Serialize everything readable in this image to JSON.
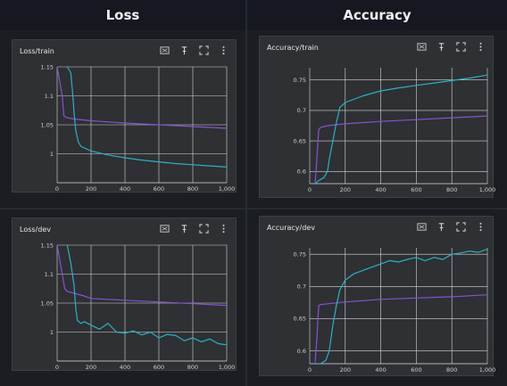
{
  "headers": {
    "left": "Loss",
    "right": "Accuracy"
  },
  "icon_names": [
    "fit-domain-icon",
    "pin-icon",
    "fullscreen-icon",
    "more-vert-icon"
  ],
  "colors": {
    "purple": "#8a4fd8",
    "cyan": "#24b4c9"
  },
  "chart_data": [
    {
      "type": "line",
      "title": "Loss/train",
      "xlim": [
        0,
        1000
      ],
      "ylim": [
        0.95,
        1.15
      ],
      "xticks": [
        0,
        200,
        400,
        600,
        800,
        1000
      ],
      "xtick_labels": [
        "0",
        "200",
        "400",
        "600",
        "800",
        "1,000"
      ],
      "yticks": [
        1,
        1.05,
        1.1,
        1.15
      ],
      "ytick_labels": [
        "1",
        "1.05",
        "1.1",
        "1.15"
      ],
      "grid": true,
      "series": [
        {
          "color": "#8a4fd8",
          "x": [
            0,
            30,
            40,
            60,
            100,
            200,
            400,
            600,
            800,
            1000
          ],
          "y": [
            1.15,
            1.1,
            1.065,
            1.062,
            1.06,
            1.057,
            1.053,
            1.05,
            1.047,
            1.044
          ]
        },
        {
          "color": "#24b4c9",
          "x": [
            60,
            80,
            90,
            100,
            110,
            125,
            140,
            160,
            200,
            300,
            400,
            500,
            600,
            700,
            800,
            900,
            1000
          ],
          "y": [
            1.15,
            1.14,
            1.11,
            1.07,
            1.04,
            1.02,
            1.013,
            1.01,
            1.005,
            0.998,
            0.993,
            0.989,
            0.986,
            0.983,
            0.981,
            0.979,
            0.977
          ]
        }
      ]
    },
    {
      "type": "line",
      "title": "Accuracy/train",
      "xlim": [
        0,
        1000
      ],
      "ylim": [
        0.58,
        0.77
      ],
      "xticks": [
        0,
        200,
        400,
        600,
        800,
        1000
      ],
      "xtick_labels": [
        "0",
        "200",
        "400",
        "600",
        "800",
        "1,000"
      ],
      "yticks": [
        0.6,
        0.65,
        0.7,
        0.75
      ],
      "ytick_labels": [
        "0.6",
        "0.65",
        "0.7",
        "0.75"
      ],
      "grid": true,
      "series": [
        {
          "color": "#8a4fd8",
          "x": [
            30,
            40,
            50,
            60,
            100,
            200,
            400,
            600,
            800,
            1000
          ],
          "y": [
            0.58,
            0.62,
            0.668,
            0.672,
            0.675,
            0.678,
            0.682,
            0.685,
            0.688,
            0.691
          ]
        },
        {
          "color": "#24b4c9",
          "x": [
            30,
            50,
            80,
            100,
            110,
            130,
            150,
            170,
            200,
            300,
            400,
            500,
            600,
            700,
            800,
            900,
            1000
          ],
          "y": [
            0.58,
            0.585,
            0.59,
            0.6,
            0.62,
            0.65,
            0.68,
            0.705,
            0.713,
            0.724,
            0.732,
            0.737,
            0.741,
            0.745,
            0.749,
            0.753,
            0.758
          ]
        }
      ]
    },
    {
      "type": "line",
      "title": "Loss/dev",
      "xlim": [
        0,
        1000
      ],
      "ylim": [
        0.95,
        1.15
      ],
      "xticks": [
        0,
        200,
        400,
        600,
        800,
        1000
      ],
      "xtick_labels": [
        "0",
        "200",
        "400",
        "600",
        "800",
        "1,000"
      ],
      "yticks": [
        1,
        1.05,
        1.1,
        1.15
      ],
      "ytick_labels": [
        "1",
        "1.05",
        "1.1",
        "1.15"
      ],
      "grid": true,
      "series": [
        {
          "color": "#8a4fd8",
          "x": [
            0,
            30,
            45,
            60,
            100,
            150,
            200,
            400,
            600,
            800,
            1000
          ],
          "y": [
            1.15,
            1.1,
            1.075,
            1.07,
            1.067,
            1.063,
            1.058,
            1.055,
            1.052,
            1.049,
            1.046
          ]
        },
        {
          "color": "#24b4c9",
          "x": [
            60,
            80,
            100,
            110,
            120,
            140,
            160,
            200,
            250,
            300,
            350,
            400,
            450,
            500,
            550,
            600,
            650,
            700,
            750,
            800,
            850,
            900,
            950,
            1000
          ],
          "y": [
            1.15,
            1.12,
            1.08,
            1.04,
            1.02,
            1.015,
            1.018,
            1.012,
            1.005,
            1.015,
            1.0,
            0.998,
            1.002,
            0.995,
            1.0,
            0.99,
            0.996,
            0.994,
            0.985,
            0.99,
            0.983,
            0.988,
            0.98,
            0.978
          ]
        }
      ]
    },
    {
      "type": "line",
      "title": "Accuracy/dev",
      "xlim": [
        0,
        1000
      ],
      "ylim": [
        0.58,
        0.76
      ],
      "xticks": [
        0,
        200,
        400,
        600,
        800,
        1000
      ],
      "xtick_labels": [
        "0",
        "200",
        "400",
        "600",
        "800",
        "1,000"
      ],
      "yticks": [
        0.6,
        0.65,
        0.7,
        0.75
      ],
      "ytick_labels": [
        "0.6",
        "0.65",
        "0.7",
        "0.75"
      ],
      "grid": true,
      "series": [
        {
          "color": "#8a4fd8",
          "x": [
            30,
            40,
            50,
            60,
            100,
            200,
            400,
            600,
            800,
            1000
          ],
          "y": [
            0.58,
            0.62,
            0.67,
            0.672,
            0.673,
            0.676,
            0.68,
            0.682,
            0.684,
            0.687
          ]
        },
        {
          "color": "#24b4c9",
          "x": [
            30,
            60,
            90,
            110,
            130,
            150,
            170,
            200,
            250,
            300,
            350,
            400,
            450,
            500,
            550,
            600,
            650,
            700,
            750,
            800,
            850,
            900,
            950,
            1000
          ],
          "y": [
            0.58,
            0.58,
            0.585,
            0.6,
            0.64,
            0.67,
            0.695,
            0.71,
            0.72,
            0.725,
            0.73,
            0.735,
            0.74,
            0.738,
            0.742,
            0.745,
            0.74,
            0.745,
            0.742,
            0.75,
            0.752,
            0.755,
            0.753,
            0.758
          ]
        }
      ]
    }
  ]
}
